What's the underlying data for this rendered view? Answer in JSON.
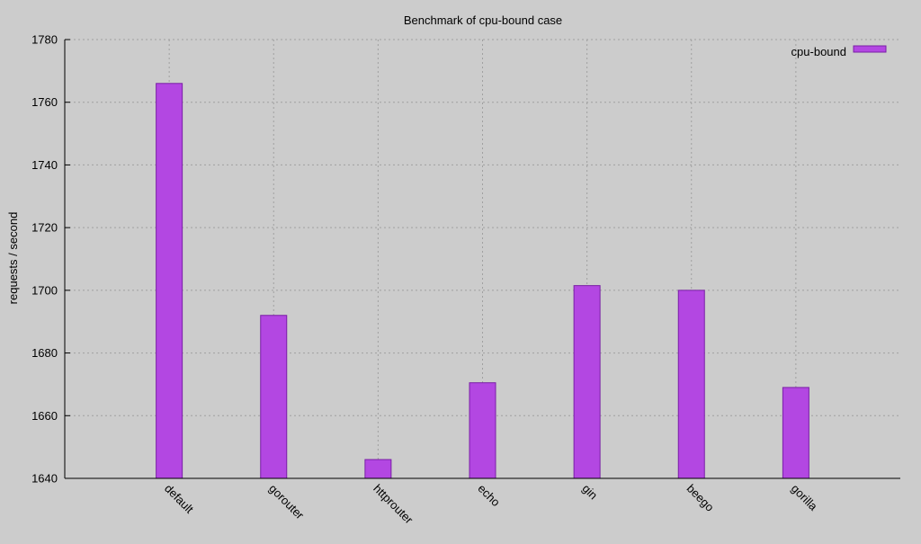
{
  "chart_data": {
    "type": "bar",
    "title": "Benchmark of cpu-bound case",
    "xlabel": "",
    "ylabel": "requests / second",
    "categories": [
      "default",
      "gorouter",
      "httprouter",
      "echo",
      "gin",
      "beego",
      "gorilla"
    ],
    "series": [
      {
        "name": "cpu-bound",
        "values": [
          1766,
          1692,
          1646,
          1670.5,
          1701.5,
          1700,
          1669
        ]
      }
    ],
    "ylim": [
      1640,
      1780
    ],
    "yticks": [
      "1640",
      "1660",
      "1680",
      "1700",
      "1720",
      "1740",
      "1760",
      "1780"
    ],
    "grid": true,
    "legend_position": "top-right",
    "colors": {
      "background": "#cccccc",
      "bar_fill": "#b347e2",
      "bar_stroke": "#7a1fa6",
      "grid": "#a0a0a0",
      "axis": "#000000"
    }
  }
}
